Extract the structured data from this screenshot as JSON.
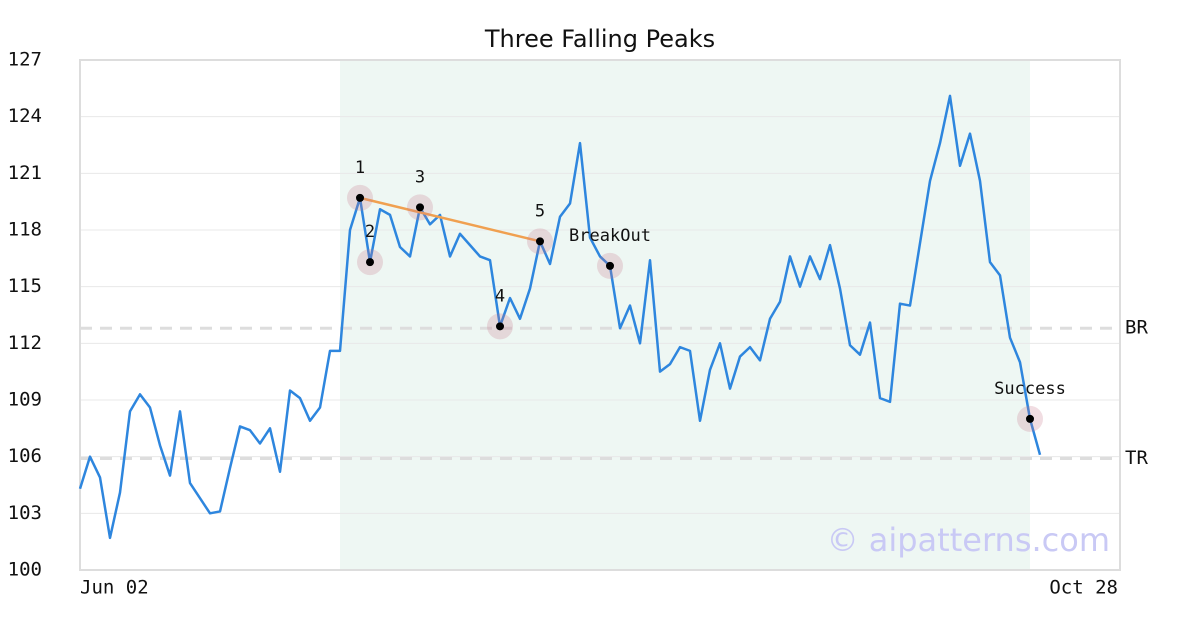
{
  "chart_data": {
    "type": "line",
    "title": "Three Falling Peaks",
    "color": "#2e86de",
    "x": [
      0,
      1,
      2,
      3,
      4,
      5,
      6,
      7,
      8,
      9,
      10,
      11,
      12,
      13,
      14,
      15,
      16,
      17,
      18,
      19,
      20,
      21,
      22,
      23,
      24,
      25,
      26,
      27,
      28,
      29,
      30,
      31,
      32,
      33,
      34,
      35,
      36,
      37,
      38,
      39,
      40,
      41,
      42,
      43,
      44,
      45,
      46,
      47,
      48,
      49,
      50,
      51,
      52,
      53,
      54,
      55,
      56,
      57,
      58,
      59,
      60,
      61,
      62,
      63,
      64,
      65,
      66,
      67,
      68,
      69,
      70,
      71,
      72,
      73,
      74,
      75,
      76,
      77,
      78,
      79,
      80,
      81,
      82,
      83,
      84,
      85,
      86,
      87,
      88,
      89,
      90,
      91,
      92,
      93,
      94,
      95,
      96
    ],
    "values": [
      104.3,
      106.0,
      104.9,
      101.7,
      104.1,
      108.4,
      109.3,
      108.6,
      106.6,
      105.0,
      108.4,
      104.6,
      103.8,
      103.0,
      103.1,
      105.4,
      107.6,
      107.4,
      106.7,
      107.5,
      105.2,
      109.5,
      109.1,
      107.9,
      108.6,
      111.6,
      111.6,
      118.0,
      119.7,
      116.3,
      119.1,
      118.8,
      117.1,
      116.6,
      119.2,
      118.3,
      118.8,
      116.6,
      117.8,
      117.2,
      116.6,
      116.4,
      112.9,
      114.4,
      113.3,
      114.9,
      117.4,
      116.2,
      118.7,
      119.4,
      122.6,
      117.6,
      116.6,
      116.1,
      112.8,
      114.0,
      112.0,
      116.4,
      110.5,
      110.9,
      111.8,
      111.6,
      107.9,
      110.6,
      112.0,
      109.6,
      111.3,
      111.8,
      111.1,
      113.3,
      114.2,
      116.6,
      115.0,
      116.6,
      115.4,
      117.2,
      114.9,
      111.9,
      111.4,
      113.1,
      109.1,
      108.9,
      114.1,
      114.0,
      117.3,
      120.6,
      122.6,
      125.1,
      121.4,
      123.1,
      120.6,
      116.3,
      115.6,
      112.3,
      111.0,
      108.0,
      106.1
    ],
    "xlim": [
      0,
      104
    ],
    "xticks": [
      {
        "value": 0,
        "label": "Jun 02"
      },
      {
        "value": 104,
        "label": "Oct 28"
      }
    ],
    "ylim": [
      100,
      127
    ],
    "yticks": [
      100,
      103,
      106,
      109,
      112,
      115,
      118,
      121,
      124,
      127
    ],
    "grid": true,
    "highlight": {
      "from": 26,
      "to": 95,
      "color": "#eef7f3"
    },
    "levels": [
      {
        "label": "BR",
        "value": 112.8
      },
      {
        "label": "TR",
        "value": 105.9
      }
    ],
    "points": [
      {
        "label": "1",
        "x": 28
      },
      {
        "label": "2",
        "x": 29
      },
      {
        "label": "3",
        "x": 34
      },
      {
        "label": "4",
        "x": 42
      },
      {
        "label": "5",
        "x": 46
      },
      {
        "label": "BreakOut",
        "x": 53
      },
      {
        "label": "Success",
        "x": 95
      }
    ],
    "trendline_color": "#f0a050",
    "watermark": "© aipatterns.com"
  }
}
